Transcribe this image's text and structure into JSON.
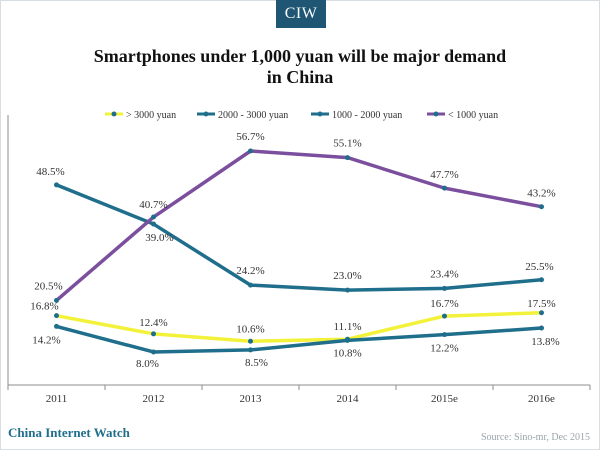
{
  "header": {
    "logo": "CIW",
    "brand": "China Internet Watch",
    "source": "Source: Sino-mr, Dec 2015"
  },
  "chart_data": {
    "type": "line",
    "title": "Smartphones under 1,000 yuan will be major demand in China",
    "title_lines": [
      "Smartphones under 1,000 yuan will be major demand",
      "in China"
    ],
    "xlabel": "",
    "ylabel": "",
    "ylim": [
      0,
      63
    ],
    "grid": false,
    "legend_position": "top",
    "categories": [
      "2011",
      "2012",
      "2013",
      "2014",
      "2015e",
      "2016e"
    ],
    "series": [
      {
        "name": "> 3000 yuan",
        "color": "#f2f23a",
        "values": [
          16.8,
          12.4,
          10.6,
          11.1,
          16.7,
          17.5
        ],
        "labels": [
          "16.8%",
          "12.4%",
          "10.6%",
          "11.1%",
          "16.7%",
          "17.5%"
        ]
      },
      {
        "name": "2000 - 3000 yuan",
        "color": "#1f6e8c",
        "values": [
          48.5,
          39.0,
          24.2,
          23.0,
          23.4,
          25.5
        ],
        "labels": [
          "48.5%",
          "39.0%",
          "24.2%",
          "23.0%",
          "23.4%",
          "25.5%"
        ]
      },
      {
        "name": "1000 - 2000 yuan",
        "color": "#1f6e8c",
        "values": [
          14.2,
          8.0,
          8.5,
          10.8,
          12.2,
          13.8
        ],
        "labels": [
          "14.2%",
          "8.0%",
          "8.5%",
          "10.8%",
          "12.2%",
          "13.8%"
        ]
      },
      {
        "name": "< 1000 yuan",
        "color": "#7b4f9e",
        "values": [
          20.5,
          40.7,
          56.7,
          55.1,
          47.7,
          43.2
        ],
        "labels": [
          "20.5%",
          "40.7%",
          "56.7%",
          "55.1%",
          "47.7%",
          "43.2%"
        ]
      }
    ]
  }
}
